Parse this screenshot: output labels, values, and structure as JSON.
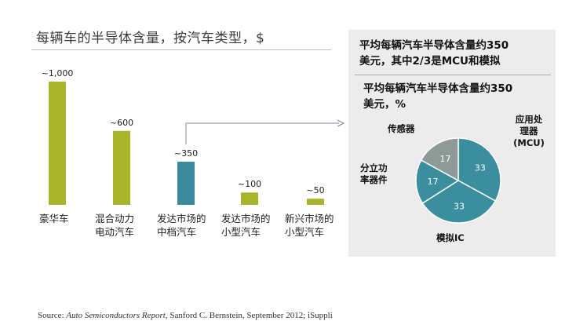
{
  "title": "每辆车的半导体含量，按汽车类型，$",
  "panel": {
    "heading": [
      "平均每辆汽车半导体含量约350",
      "美元，其中2/3是MCU和模拟"
    ],
    "subheading": [
      "平均每辆汽车半导体含量约350",
      "美元，%"
    ]
  },
  "source": {
    "label": "Source:",
    "report": "Auto Semiconductors Report",
    "rest": ", Sanford C. Bernstein, September 2012; iSuppli"
  },
  "colors": {
    "olive": "#A8B42A",
    "teal": "#3A8A9C",
    "pie_teal": "#3A8E9E",
    "pie_grey": "#8E9A98"
  },
  "chart_data": [
    {
      "type": "bar",
      "title": "每辆车的半导体含量，按汽车类型，$",
      "categories": [
        "豪华车",
        "混合动力\n电动汽车",
        "发达市场的\n中档汽车",
        "发达市场的\n小型汽车",
        "新兴市场的\n小型汽车"
      ],
      "values": [
        1000,
        600,
        350,
        100,
        50
      ],
      "value_labels": [
        "~1,000",
        "~600",
        "~350",
        "~100",
        "~50"
      ],
      "highlight_index": 2,
      "ylim": [
        0,
        1000
      ],
      "grid": false
    },
    {
      "type": "pie",
      "title": "平均每辆汽车半导体含量约350美元，%",
      "slices": [
        {
          "label": "应用处\n理器\n(MCU)",
          "value": 33
        },
        {
          "label": "模拟IC",
          "value": 33
        },
        {
          "label": "分立功\n率器件",
          "value": 17
        },
        {
          "label": "传感器",
          "value": 17
        }
      ]
    }
  ]
}
